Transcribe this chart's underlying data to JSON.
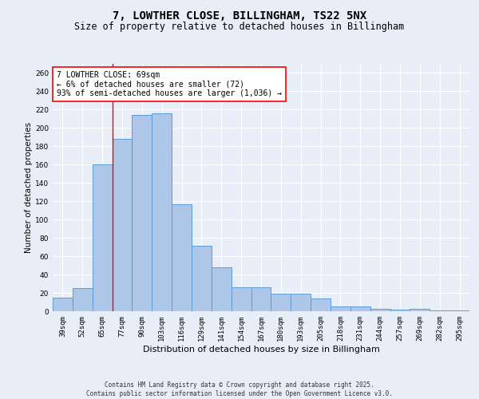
{
  "title_line1": "7, LOWTHER CLOSE, BILLINGHAM, TS22 5NX",
  "title_line2": "Size of property relative to detached houses in Billingham",
  "xlabel": "Distribution of detached houses by size in Billingham",
  "ylabel": "Number of detached properties",
  "categories": [
    "39sqm",
    "52sqm",
    "65sqm",
    "77sqm",
    "90sqm",
    "103sqm",
    "116sqm",
    "129sqm",
    "141sqm",
    "154sqm",
    "167sqm",
    "180sqm",
    "193sqm",
    "205sqm",
    "218sqm",
    "231sqm",
    "244sqm",
    "257sqm",
    "269sqm",
    "282sqm",
    "295sqm"
  ],
  "values": [
    15,
    25,
    160,
    188,
    214,
    216,
    117,
    71,
    48,
    26,
    26,
    19,
    19,
    14,
    5,
    5,
    3,
    2,
    3,
    1,
    1
  ],
  "bar_color": "#aec6e8",
  "bar_edge_color": "#5b9bd5",
  "vline_color": "red",
  "vline_x": 2.5,
  "annotation_text": "7 LOWTHER CLOSE: 69sqm\n← 6% of detached houses are smaller (72)\n93% of semi-detached houses are larger (1,036) →",
  "annotation_box_color": "white",
  "annotation_box_edge_color": "red",
  "ylim": [
    0,
    270
  ],
  "yticks": [
    0,
    20,
    40,
    60,
    80,
    100,
    120,
    140,
    160,
    180,
    200,
    220,
    240,
    260
  ],
  "background_color": "#e8eef8",
  "grid_color": "#ffffff",
  "footer_text": "Contains HM Land Registry data © Crown copyright and database right 2025.\nContains public sector information licensed under the Open Government Licence v3.0.",
  "title_fontsize": 10,
  "subtitle_fontsize": 8.5,
  "xlabel_fontsize": 8,
  "ylabel_fontsize": 7.5,
  "tick_fontsize": 6.5,
  "annotation_fontsize": 7,
  "footer_fontsize": 5.5
}
